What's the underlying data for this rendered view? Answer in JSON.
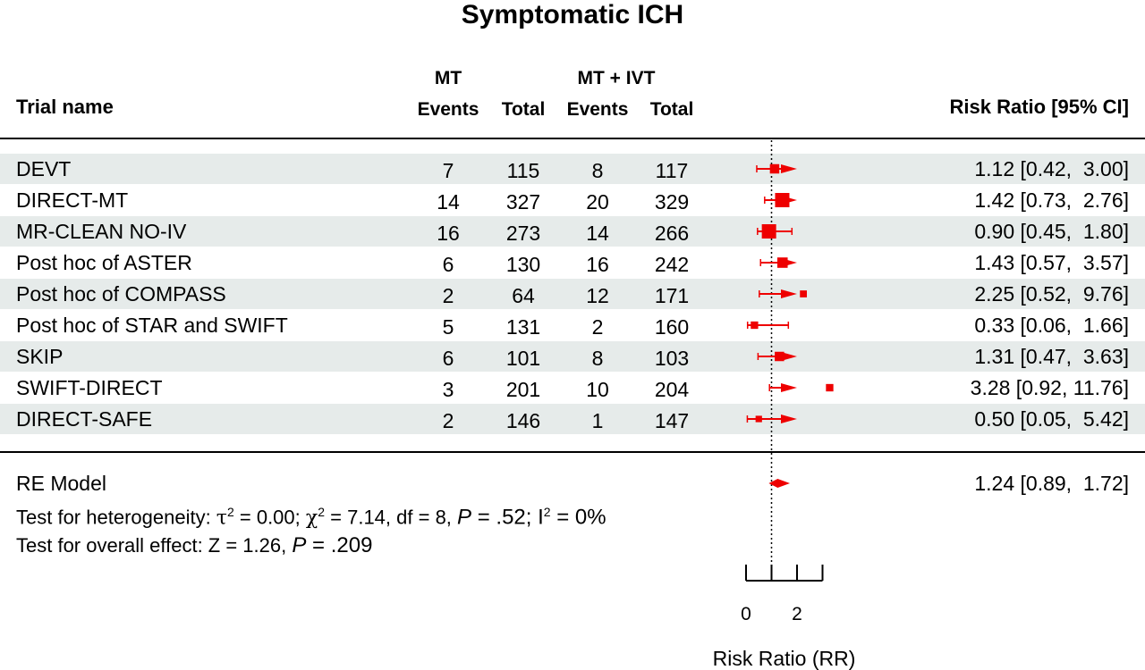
{
  "title": "Symptomatic ICH",
  "headers": {
    "trial": "Trial name",
    "mt_group": "MT",
    "mtivt_group": "MT + IVT",
    "events": "Events",
    "total": "Total",
    "rr": "Risk Ratio [95% CI]"
  },
  "rows": [
    {
      "name": "DEVT",
      "mt_events": "7",
      "mt_total": "115",
      "ivt_events": "8",
      "ivt_total": "117",
      "rr_text": "1.12 [0.42,  3.00]"
    },
    {
      "name": "DIRECT-MT",
      "mt_events": "14",
      "mt_total": "327",
      "ivt_events": "20",
      "ivt_total": "329",
      "rr_text": "1.42 [0.73,  2.76]"
    },
    {
      "name": "MR-CLEAN NO-IV",
      "mt_events": "16",
      "mt_total": "273",
      "ivt_events": "14",
      "ivt_total": "266",
      "rr_text": "0.90 [0.45,  1.80]"
    },
    {
      "name": "Post hoc of ASTER",
      "mt_events": "6",
      "mt_total": "130",
      "ivt_events": "16",
      "ivt_total": "242",
      "rr_text": "1.43 [0.57,  3.57]"
    },
    {
      "name": "Post hoc of COMPASS",
      "mt_events": "2",
      "mt_total": "64",
      "ivt_events": "12",
      "ivt_total": "171",
      "rr_text": "2.25 [0.52,  9.76]"
    },
    {
      "name": "Post hoc of STAR and SWIFT",
      "mt_events": "5",
      "mt_total": "131",
      "ivt_events": "2",
      "ivt_total": "160",
      "rr_text": "0.33 [0.06,  1.66]"
    },
    {
      "name": "SKIP",
      "mt_events": "6",
      "mt_total": "101",
      "ivt_events": "8",
      "ivt_total": "103",
      "rr_text": "1.31 [0.47,  3.63]"
    },
    {
      "name": "SWIFT-DIRECT",
      "mt_events": "3",
      "mt_total": "201",
      "ivt_events": "10",
      "ivt_total": "204",
      "rr_text": "3.28 [0.92, 11.76]"
    },
    {
      "name": "DIRECT-SAFE",
      "mt_events": "2",
      "mt_total": "146",
      "ivt_events": "1",
      "ivt_total": "147",
      "rr_text": "0.50 [0.05,  5.42]"
    }
  ],
  "summary": {
    "label": "RE Model",
    "rr_text": "1.24 [0.89,  1.72]",
    "heterogeneity_prefix": "Test for heterogeneity: ",
    "tau_sym": "τ",
    "tau_val": " = 0.00; ",
    "chi_sym": "χ",
    "chi_val": " = 7.14, df = 8, ",
    "p_sym": "P",
    "p_val": " = .52; ",
    "i_sym": "I",
    "i_val": " = 0%",
    "sq": "2",
    "overall_prefix": "Test for overall effect: Z = 1.26, ",
    "overall_p_sym": "P",
    "overall_p_val": " = .209"
  },
  "colors": {
    "marker": "#ee0000",
    "band": "#e6ebea",
    "text": "#000000"
  },
  "chart_data": {
    "type": "forest",
    "title": "Symptomatic ICH",
    "xlabel": "Risk Ratio (RR)",
    "x_ticks": [
      "0",
      "",
      "2",
      ""
    ],
    "x_tick_values": [
      0,
      1,
      2,
      3
    ],
    "xlim": [
      0,
      3
    ],
    "reference_line": 1,
    "display_clip_upper": 2,
    "studies": [
      {
        "name": "DEVT",
        "rr": 1.12,
        "lower": 0.42,
        "upper": 3.0,
        "weight": 1.0
      },
      {
        "name": "DIRECT-MT",
        "rr": 1.42,
        "lower": 0.73,
        "upper": 2.76,
        "weight": 2.0
      },
      {
        "name": "MR-CLEAN NO-IV",
        "rr": 0.9,
        "lower": 0.45,
        "upper": 1.8,
        "weight": 2.0
      },
      {
        "name": "Post hoc of ASTER",
        "rr": 1.43,
        "lower": 0.57,
        "upper": 3.57,
        "weight": 1.2
      },
      {
        "name": "Post hoc of COMPASS",
        "rr": 2.25,
        "lower": 0.52,
        "upper": 9.76,
        "weight": 0.5
      },
      {
        "name": "Post hoc of STAR and SWIFT",
        "rr": 0.33,
        "lower": 0.06,
        "upper": 1.66,
        "weight": 0.6
      },
      {
        "name": "SKIP",
        "rr": 1.31,
        "lower": 0.47,
        "upper": 3.63,
        "weight": 1.0
      },
      {
        "name": "SWIFT-DIRECT",
        "rr": 3.28,
        "lower": 0.92,
        "upper": 11.76,
        "weight": 0.6
      },
      {
        "name": "DIRECT-SAFE",
        "rr": 0.5,
        "lower": 0.05,
        "upper": 5.42,
        "weight": 0.4
      }
    ],
    "summary": {
      "name": "RE Model",
      "rr": 1.24,
      "lower": 0.89,
      "upper": 1.72
    }
  }
}
